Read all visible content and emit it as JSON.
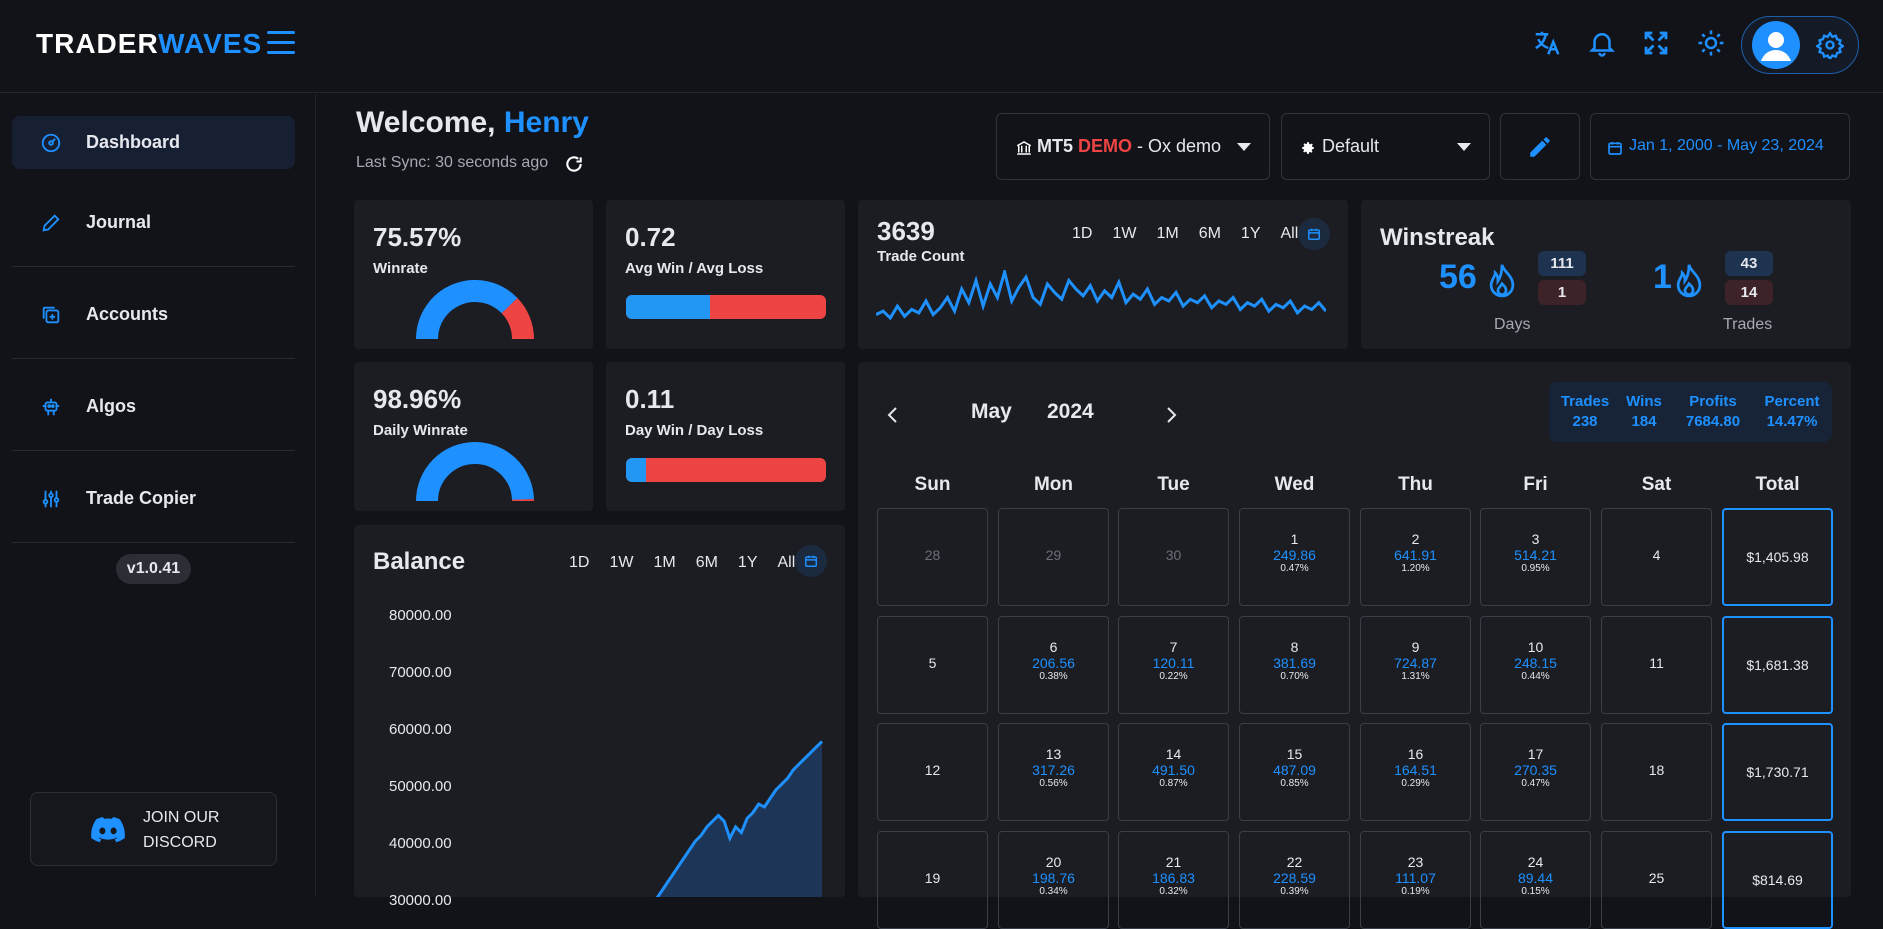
{
  "header": {
    "logo_left": "TRADER",
    "logo_right": "WAVES"
  },
  "sidebar": {
    "items": [
      {
        "label": "Dashboard",
        "icon": "gauge-icon"
      },
      {
        "label": "Journal",
        "icon": "pencil-icon"
      },
      {
        "label": "Accounts",
        "icon": "accounts-icon"
      },
      {
        "label": "Algos",
        "icon": "robot-icon"
      },
      {
        "label": "Trade Copier",
        "icon": "sliders-icon"
      }
    ],
    "version": "v1.0.41",
    "discord_line1": "JOIN OUR",
    "discord_line2": "DISCORD"
  },
  "welcome": {
    "prefix": "Welcome,",
    "name": "Henry",
    "last_sync": "Last Sync: 30 seconds ago"
  },
  "account_select": {
    "platform": "MT5",
    "type": "DEMO",
    "name": "- Ox demo"
  },
  "layout_select": {
    "value": "Default"
  },
  "date_range": "Jan 1, 2000 - May 23, 2024",
  "stats": {
    "winrate": {
      "value": "75.57%",
      "label": "Winrate",
      "fraction": 0.7557
    },
    "avg_win_loss": {
      "value": "0.72",
      "label": "Avg Win / Avg Loss",
      "fraction": 0.42
    },
    "daily_winrate": {
      "value": "98.96%",
      "label": "Daily Winrate",
      "fraction": 0.9896
    },
    "day_win_loss": {
      "value": "0.11",
      "label": "Day Win / Day Loss",
      "fraction": 0.1
    }
  },
  "trade_count": {
    "value": "3639",
    "label": "Trade Count",
    "ranges": [
      "1D",
      "1W",
      "1M",
      "6M",
      "1Y",
      "All"
    ],
    "sparkline": [
      20,
      22,
      18,
      25,
      19,
      23,
      21,
      28,
      20,
      24,
      30,
      22,
      35,
      27,
      40,
      25,
      38,
      30,
      45,
      28,
      36,
      42,
      30,
      26,
      38,
      33,
      29,
      40,
      35,
      31,
      37,
      28,
      34,
      30,
      39,
      27,
      32,
      29,
      35,
      26,
      30,
      28,
      33,
      25,
      29,
      27,
      31,
      24,
      28,
      26,
      30,
      23,
      27,
      25,
      29,
      22,
      26,
      24,
      28,
      21,
      25,
      23,
      27,
      22
    ]
  },
  "winstreak": {
    "title": "Winstreak",
    "days": {
      "value": "56",
      "up": "111",
      "down": "1",
      "caption": "Days"
    },
    "trades": {
      "value": "1",
      "up": "43",
      "down": "14",
      "caption": "Trades"
    }
  },
  "balance": {
    "title": "Balance",
    "ranges": [
      "1D",
      "1W",
      "1M",
      "6M",
      "1Y",
      "All"
    ],
    "y_ticks": [
      "80000.00",
      "70000.00",
      "60000.00",
      "50000.00",
      "40000.00",
      "30000.00"
    ]
  },
  "chart_data": {
    "type": "area",
    "title": "Balance",
    "ylim": [
      30000,
      80000
    ],
    "y_ticks": [
      80000,
      70000,
      60000,
      50000,
      40000,
      30000
    ],
    "values": [
      30000,
      31500,
      33000,
      34500,
      36000,
      37500,
      39000,
      40500,
      41500,
      43000,
      44000,
      45000,
      44000,
      41000,
      43000,
      42000,
      44500,
      45500,
      47000,
      46500,
      48000,
      49500,
      50500,
      51500,
      53000,
      54000,
      55000,
      56000,
      57000,
      58000
    ]
  },
  "calendar": {
    "month": "May",
    "year": "2024",
    "summary": [
      {
        "label": "Trades",
        "value": "238"
      },
      {
        "label": "Wins",
        "value": "184"
      },
      {
        "label": "Profits",
        "value": "7684.80"
      },
      {
        "label": "Percent",
        "value": "14.47%"
      }
    ],
    "headers": [
      "Sun",
      "Mon",
      "Tue",
      "Wed",
      "Thu",
      "Fri",
      "Sat",
      "Total"
    ],
    "weeks": [
      {
        "days": [
          {
            "d": "28",
            "m": true
          },
          {
            "d": "29",
            "m": true
          },
          {
            "d": "30",
            "m": true
          },
          {
            "d": "1",
            "v": "249.86",
            "p": "0.47%"
          },
          {
            "d": "2",
            "v": "641.91",
            "p": "1.20%"
          },
          {
            "d": "3",
            "v": "514.21",
            "p": "0.95%"
          },
          {
            "d": "4"
          }
        ],
        "total": "$1,405.98"
      },
      {
        "days": [
          {
            "d": "5"
          },
          {
            "d": "6",
            "v": "206.56",
            "p": "0.38%"
          },
          {
            "d": "7",
            "v": "120.11",
            "p": "0.22%"
          },
          {
            "d": "8",
            "v": "381.69",
            "p": "0.70%"
          },
          {
            "d": "9",
            "v": "724.87",
            "p": "1.31%"
          },
          {
            "d": "10",
            "v": "248.15",
            "p": "0.44%"
          },
          {
            "d": "11"
          }
        ],
        "total": "$1,681.38"
      },
      {
        "days": [
          {
            "d": "12"
          },
          {
            "d": "13",
            "v": "317.26",
            "p": "0.56%"
          },
          {
            "d": "14",
            "v": "491.50",
            "p": "0.87%"
          },
          {
            "d": "15",
            "v": "487.09",
            "p": "0.85%"
          },
          {
            "d": "16",
            "v": "164.51",
            "p": "0.29%"
          },
          {
            "d": "17",
            "v": "270.35",
            "p": "0.47%"
          },
          {
            "d": "18"
          }
        ],
        "total": "$1,730.71"
      },
      {
        "days": [
          {
            "d": "19"
          },
          {
            "d": "20",
            "v": "198.76",
            "p": "0.34%"
          },
          {
            "d": "21",
            "v": "186.83",
            "p": "0.32%"
          },
          {
            "d": "22",
            "v": "228.59",
            "p": "0.39%"
          },
          {
            "d": "23",
            "v": "111.07",
            "p": "0.19%"
          },
          {
            "d": "24",
            "v": "89.44",
            "p": "0.15%"
          },
          {
            "d": "25"
          }
        ],
        "total": "$814.69"
      }
    ]
  },
  "colors": {
    "accent": "#1e90ff",
    "loss": "#ef4444",
    "bg": "#111318",
    "card": "#1b1d22"
  }
}
